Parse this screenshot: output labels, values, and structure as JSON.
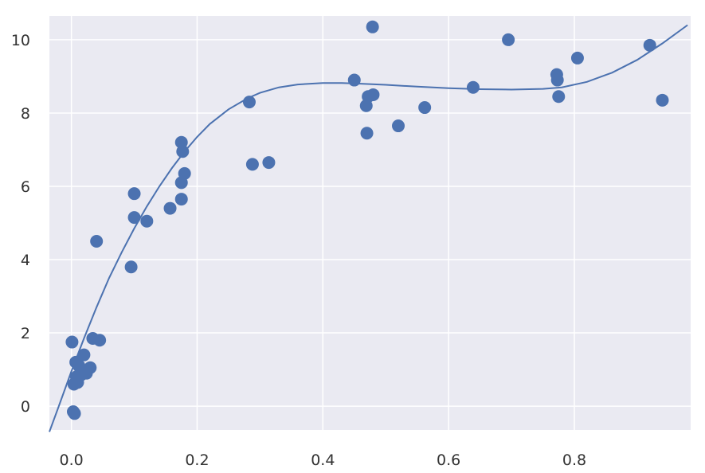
{
  "chart_data": {
    "type": "scatter",
    "title": "",
    "xlabel": "",
    "ylabel": "",
    "xlim": [
      -0.035,
      0.985
    ],
    "ylim": [
      -0.65,
      10.65
    ],
    "grid": true,
    "x_ticks": [
      0.0,
      0.2,
      0.4,
      0.6,
      0.8
    ],
    "x_tick_labels": [
      "0.0",
      "0.2",
      "0.4",
      "0.6",
      "0.8"
    ],
    "y_ticks": [
      0,
      2,
      4,
      6,
      8,
      10
    ],
    "y_tick_labels": [
      "0",
      "2",
      "4",
      "6",
      "8",
      "10"
    ],
    "colors": {
      "background": "#eaeaf2",
      "grid": "#ffffff",
      "marker": "#4c72b0",
      "line": "#4c72b0"
    },
    "series": [
      {
        "kind": "points",
        "x": [
          0.001,
          0.003,
          0.004,
          0.005,
          0.007,
          0.008,
          0.01,
          0.012,
          0.015,
          0.02,
          0.024,
          0.03,
          0.034,
          0.04,
          0.045,
          0.095,
          0.1,
          0.1,
          0.12,
          0.157,
          0.175,
          0.175,
          0.175,
          0.177,
          0.18,
          0.283,
          0.288,
          0.314,
          0.45,
          0.469,
          0.47,
          0.472,
          0.479,
          0.48,
          0.52,
          0.562,
          0.639,
          0.695,
          0.772,
          0.773,
          0.775,
          0.805,
          0.92,
          0.94
        ],
        "y": [
          1.75,
          -0.15,
          0.6,
          -0.2,
          1.2,
          0.8,
          0.65,
          1.1,
          0.85,
          1.4,
          0.9,
          1.05,
          1.85,
          4.5,
          1.8,
          3.8,
          5.8,
          5.15,
          5.05,
          5.4,
          5.65,
          6.1,
          7.2,
          6.95,
          6.35,
          8.3,
          6.6,
          6.65,
          8.9,
          8.2,
          7.45,
          8.45,
          10.35,
          8.5,
          7.65,
          8.15,
          8.7,
          10.0,
          9.05,
          8.9,
          8.45,
          9.5,
          9.85,
          8.35
        ]
      },
      {
        "kind": "fit-line",
        "x": [
          -0.035,
          -0.02,
          0.0,
          0.02,
          0.04,
          0.06,
          0.08,
          0.1,
          0.12,
          0.14,
          0.16,
          0.18,
          0.2,
          0.22,
          0.25,
          0.28,
          0.3,
          0.33,
          0.36,
          0.4,
          0.43,
          0.46,
          0.5,
          0.55,
          0.6,
          0.65,
          0.7,
          0.75,
          0.78,
          0.82,
          0.86,
          0.9,
          0.94,
          0.98
        ],
        "y": [
          -0.7,
          0.0,
          0.95,
          1.85,
          2.7,
          3.5,
          4.2,
          4.85,
          5.45,
          6.0,
          6.5,
          6.95,
          7.35,
          7.7,
          8.1,
          8.4,
          8.55,
          8.7,
          8.78,
          8.82,
          8.82,
          8.8,
          8.77,
          8.72,
          8.68,
          8.65,
          8.64,
          8.66,
          8.7,
          8.85,
          9.1,
          9.45,
          9.9,
          10.4
        ]
      }
    ]
  }
}
